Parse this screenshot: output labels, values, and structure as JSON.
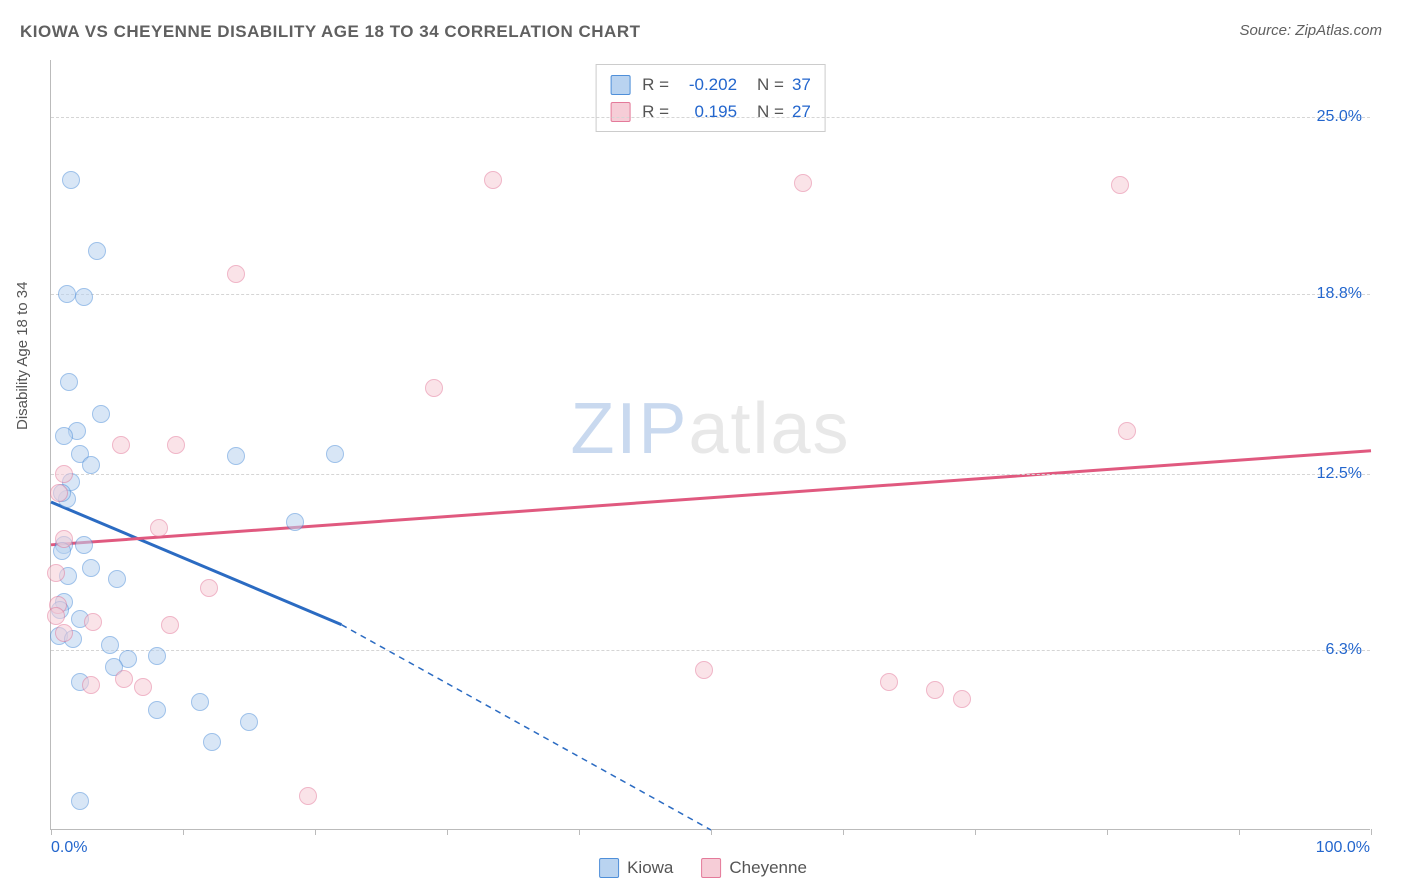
{
  "title": "KIOWA VS CHEYENNE DISABILITY AGE 18 TO 34 CORRELATION CHART",
  "source": "Source: ZipAtlas.com",
  "y_axis_label": "Disability Age 18 to 34",
  "watermark": {
    "part1": "ZIP",
    "part2": "atlas"
  },
  "chart": {
    "type": "scatter",
    "background_color": "#ffffff",
    "grid_color": "#d5d5d5",
    "axis_color": "#bbbbbb",
    "xlim": [
      0,
      100
    ],
    "ylim": [
      0,
      27
    ],
    "x_tick_positions": [
      0,
      10,
      20,
      30,
      40,
      50,
      60,
      70,
      80,
      90,
      100
    ],
    "x_axis_labels": [
      {
        "text": "0.0%",
        "x": 0,
        "align": "left"
      },
      {
        "text": "100.0%",
        "x": 100,
        "align": "right"
      }
    ],
    "y_ticks": [
      {
        "value": 6.3,
        "label": "6.3%"
      },
      {
        "value": 12.5,
        "label": "12.5%"
      },
      {
        "value": 18.8,
        "label": "18.8%"
      },
      {
        "value": 25.0,
        "label": "25.0%"
      }
    ],
    "label_color": "#2366cd",
    "label_fontsize": 16,
    "marker_radius": 9,
    "marker_opacity": 0.55,
    "series": [
      {
        "name": "Kiowa",
        "fill": "#b9d3f0",
        "stroke": "#4f8fd9",
        "trend_color": "#2b6bc2",
        "r": "-0.202",
        "n": "37",
        "trend": {
          "x1": 0,
          "y1": 11.5,
          "x2": 22,
          "y2": 7.2,
          "x2_dash": 50,
          "y2_dash": 0
        },
        "points": [
          {
            "x": 1.5,
            "y": 22.8
          },
          {
            "x": 3.5,
            "y": 20.3
          },
          {
            "x": 1.2,
            "y": 18.8
          },
          {
            "x": 2.5,
            "y": 18.7
          },
          {
            "x": 1.4,
            "y": 15.7
          },
          {
            "x": 2.0,
            "y": 14.0
          },
          {
            "x": 3.8,
            "y": 14.6
          },
          {
            "x": 1.0,
            "y": 13.8
          },
          {
            "x": 2.2,
            "y": 13.2
          },
          {
            "x": 14.0,
            "y": 13.1
          },
          {
            "x": 21.5,
            "y": 13.2
          },
          {
            "x": 1.5,
            "y": 12.2
          },
          {
            "x": 1.2,
            "y": 11.6
          },
          {
            "x": 0.8,
            "y": 11.8
          },
          {
            "x": 18.5,
            "y": 10.8
          },
          {
            "x": 1.0,
            "y": 10.0
          },
          {
            "x": 2.5,
            "y": 10.0
          },
          {
            "x": 0.8,
            "y": 9.8
          },
          {
            "x": 3.0,
            "y": 9.2
          },
          {
            "x": 1.3,
            "y": 8.9
          },
          {
            "x": 5.0,
            "y": 8.8
          },
          {
            "x": 1.0,
            "y": 8.0
          },
          {
            "x": 0.7,
            "y": 7.7
          },
          {
            "x": 2.2,
            "y": 7.4
          },
          {
            "x": 0.6,
            "y": 6.8
          },
          {
            "x": 8.0,
            "y": 6.1
          },
          {
            "x": 4.5,
            "y": 6.5
          },
          {
            "x": 5.8,
            "y": 6.0
          },
          {
            "x": 2.2,
            "y": 5.2
          },
          {
            "x": 11.3,
            "y": 4.5
          },
          {
            "x": 8.0,
            "y": 4.2
          },
          {
            "x": 15.0,
            "y": 3.8
          },
          {
            "x": 12.2,
            "y": 3.1
          },
          {
            "x": 2.2,
            "y": 1.0
          },
          {
            "x": 4.8,
            "y": 5.7
          },
          {
            "x": 1.7,
            "y": 6.7
          },
          {
            "x": 3.0,
            "y": 12.8
          }
        ]
      },
      {
        "name": "Cheyenne",
        "fill": "#f6cdd7",
        "stroke": "#e47a9a",
        "trend_color": "#e0597f",
        "r": "0.195",
        "n": "27",
        "trend": {
          "x1": 0,
          "y1": 10.0,
          "x2": 100,
          "y2": 13.3
        },
        "points": [
          {
            "x": 33.5,
            "y": 22.8
          },
          {
            "x": 57.0,
            "y": 22.7
          },
          {
            "x": 81.0,
            "y": 22.6
          },
          {
            "x": 14.0,
            "y": 19.5
          },
          {
            "x": 29.0,
            "y": 15.5
          },
          {
            "x": 81.5,
            "y": 14.0
          },
          {
            "x": 5.3,
            "y": 13.5
          },
          {
            "x": 9.5,
            "y": 13.5
          },
          {
            "x": 1.0,
            "y": 12.5
          },
          {
            "x": 0.6,
            "y": 11.8
          },
          {
            "x": 8.2,
            "y": 10.6
          },
          {
            "x": 1.0,
            "y": 10.2
          },
          {
            "x": 0.4,
            "y": 9.0
          },
          {
            "x": 12.0,
            "y": 8.5
          },
          {
            "x": 0.5,
            "y": 7.9
          },
          {
            "x": 0.4,
            "y": 7.5
          },
          {
            "x": 3.2,
            "y": 7.3
          },
          {
            "x": 9.0,
            "y": 7.2
          },
          {
            "x": 1.0,
            "y": 6.9
          },
          {
            "x": 5.5,
            "y": 5.3
          },
          {
            "x": 3.0,
            "y": 5.1
          },
          {
            "x": 7.0,
            "y": 5.0
          },
          {
            "x": 63.5,
            "y": 5.2
          },
          {
            "x": 67.0,
            "y": 4.9
          },
          {
            "x": 69.0,
            "y": 4.6
          },
          {
            "x": 49.5,
            "y": 5.6
          },
          {
            "x": 19.5,
            "y": 1.2
          }
        ]
      }
    ]
  },
  "bottom_legend": [
    {
      "label": "Kiowa",
      "fill": "#b9d3f0",
      "stroke": "#4f8fd9"
    },
    {
      "label": "Cheyenne",
      "fill": "#f6cdd7",
      "stroke": "#e47a9a"
    }
  ]
}
